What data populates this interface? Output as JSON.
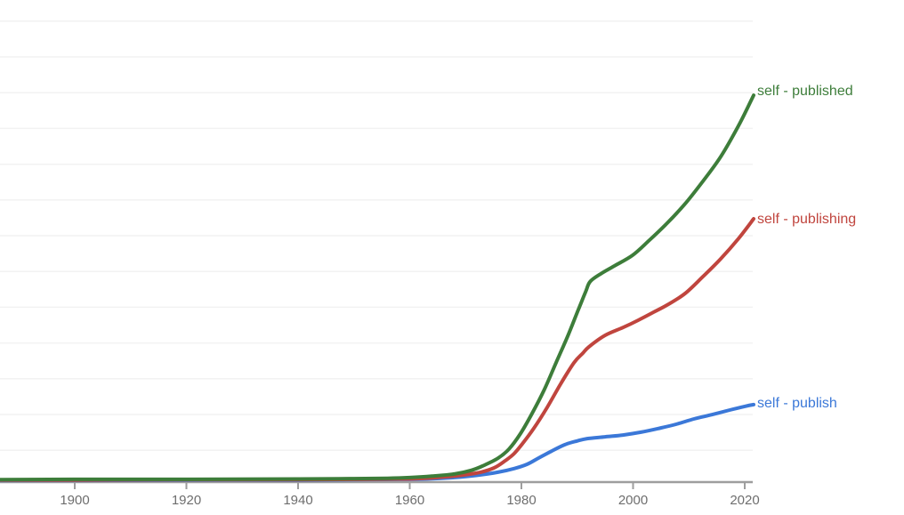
{
  "chart_data": {
    "type": "line",
    "title": "",
    "xlabel": "",
    "ylabel": "",
    "grid": true,
    "legend_position": "end-of-line-labels",
    "background_color": "#ffffff",
    "axis_color": "#9e9e9e",
    "gridline_color": "#f2f2f2",
    "x_axis": {
      "tick_years": [
        "1900",
        "1920",
        "1940",
        "1960",
        "1980",
        "2000",
        "2020"
      ],
      "range": [
        1886.6,
        2021.6
      ],
      "tick_label_color": "#6e6e6e"
    },
    "y_axis": {
      "range_units": [
        0,
        13.5
      ],
      "gridline_count": 13,
      "note": "y-axis labels not visible; values estimated in unlabeled gridline units (1 unit = one gridline division above the x-axis)"
    },
    "series": [
      {
        "name": "self - publish",
        "color": "#3b78d8",
        "points": [
          [
            1886.6,
            0.04
          ],
          [
            1900,
            0.04
          ],
          [
            1920,
            0.05
          ],
          [
            1940,
            0.05
          ],
          [
            1950,
            0.06
          ],
          [
            1958,
            0.07
          ],
          [
            1963.1,
            0.08
          ],
          [
            1967.9,
            0.12
          ],
          [
            1971.9,
            0.18
          ],
          [
            1975.8,
            0.27
          ],
          [
            1978.7,
            0.37
          ],
          [
            1981,
            0.49
          ],
          [
            1983,
            0.66
          ],
          [
            1985.4,
            0.86
          ],
          [
            1987.8,
            1.04
          ],
          [
            1989.9,
            1.14
          ],
          [
            1991.8,
            1.21
          ],
          [
            1995,
            1.26
          ],
          [
            1998.2,
            1.31
          ],
          [
            2001.4,
            1.39
          ],
          [
            2004.5,
            1.49
          ],
          [
            2007.7,
            1.61
          ],
          [
            2010.9,
            1.76
          ],
          [
            2014.1,
            1.88
          ],
          [
            2017.3,
            2.01
          ],
          [
            2020,
            2.11
          ],
          [
            2021.6,
            2.16
          ]
        ]
      },
      {
        "name": "self - publishing",
        "color": "#c0453e",
        "points": [
          [
            1886.6,
            0.05
          ],
          [
            1900,
            0.05
          ],
          [
            1920,
            0.06
          ],
          [
            1940,
            0.06
          ],
          [
            1950,
            0.07
          ],
          [
            1958,
            0.08
          ],
          [
            1961.5,
            0.09
          ],
          [
            1966.3,
            0.14
          ],
          [
            1969.5,
            0.19
          ],
          [
            1972.7,
            0.27
          ],
          [
            1975.1,
            0.39
          ],
          [
            1977.1,
            0.59
          ],
          [
            1978.7,
            0.79
          ],
          [
            1980.3,
            1.09
          ],
          [
            1982.2,
            1.49
          ],
          [
            1984.6,
            2.08
          ],
          [
            1987,
            2.73
          ],
          [
            1989.4,
            3.33
          ],
          [
            1991,
            3.6
          ],
          [
            1992.1,
            3.78
          ],
          [
            1995,
            4.1
          ],
          [
            1998.2,
            4.32
          ],
          [
            2000.9,
            4.52
          ],
          [
            2003.7,
            4.75
          ],
          [
            2006.1,
            4.95
          ],
          [
            2009.3,
            5.27
          ],
          [
            2012.5,
            5.74
          ],
          [
            2015.7,
            6.24
          ],
          [
            2018.9,
            6.81
          ],
          [
            2021.6,
            7.36
          ]
        ]
      },
      {
        "name": "self - published",
        "color": "#3d7d3a",
        "points": [
          [
            1886.6,
            0.06
          ],
          [
            1900,
            0.07
          ],
          [
            1920,
            0.07
          ],
          [
            1940,
            0.08
          ],
          [
            1950,
            0.09
          ],
          [
            1956,
            0.1
          ],
          [
            1960,
            0.12
          ],
          [
            1964,
            0.16
          ],
          [
            1968,
            0.22
          ],
          [
            1971,
            0.32
          ],
          [
            1973,
            0.44
          ],
          [
            1975.8,
            0.66
          ],
          [
            1977.8,
            0.92
          ],
          [
            1979.8,
            1.34
          ],
          [
            1981.9,
            1.91
          ],
          [
            1984.1,
            2.58
          ],
          [
            1986.2,
            3.33
          ],
          [
            1988.3,
            4.08
          ],
          [
            1990.2,
            4.82
          ],
          [
            1991.5,
            5.32
          ],
          [
            1992.3,
            5.6
          ],
          [
            1994.2,
            5.82
          ],
          [
            1996.6,
            6.04
          ],
          [
            1999.9,
            6.34
          ],
          [
            2002.9,
            6.76
          ],
          [
            2006.1,
            7.24
          ],
          [
            2009.3,
            7.78
          ],
          [
            2012.5,
            8.41
          ],
          [
            2015.7,
            9.1
          ],
          [
            2018.9,
            9.97
          ],
          [
            2021.6,
            10.82
          ]
        ]
      }
    ]
  }
}
